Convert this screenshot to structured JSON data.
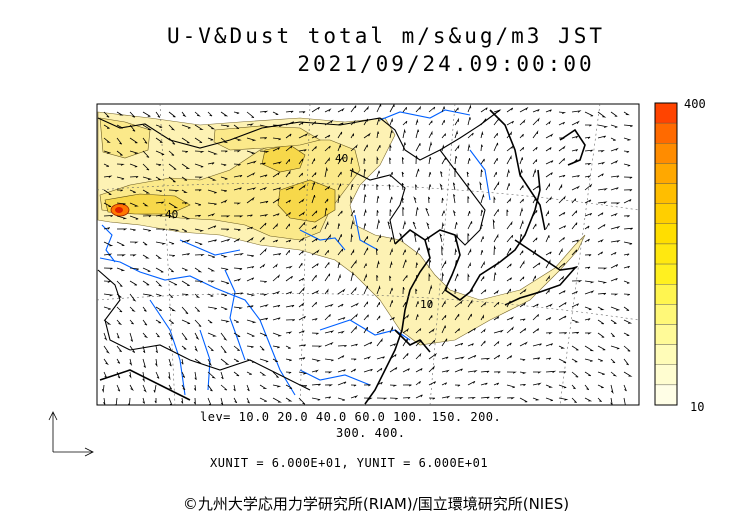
{
  "title": {
    "line1": "U-V&Dust total m/s&ug/m3 JST",
    "line2": "2021/09/24.09:00:00"
  },
  "levels": {
    "line1": "lev= 10.0 20.0 40.0 60.0 100. 150. 200.",
    "line2": "300. 400."
  },
  "units": "XUNIT = 6.000E+01, YUNIT = 6.000E+01",
  "credit": "©九州大学応用力学研究所(RIAM)/国立環境研究所(NIES)",
  "colorbar": {
    "max_label": "400",
    "min_label": "10",
    "colors": [
      "#ff4400",
      "#ff6a00",
      "#ff8c00",
      "#ffa800",
      "#ffbe00",
      "#ffcf00",
      "#ffde00",
      "#ffe810",
      "#fff020",
      "#fff550",
      "#fff878",
      "#fffa98",
      "#fffcb8",
      "#fffdd0",
      "#fffee6"
    ]
  },
  "contour_labels": [
    "40",
    "40",
    "10"
  ],
  "colors": {
    "dust_light": "#fdf2b4",
    "dust_mid": "#fbe98a",
    "dust_high": "#f7d84a",
    "dust_peak": "#ff4400",
    "coast": "#000000",
    "river": "#0060ff"
  }
}
